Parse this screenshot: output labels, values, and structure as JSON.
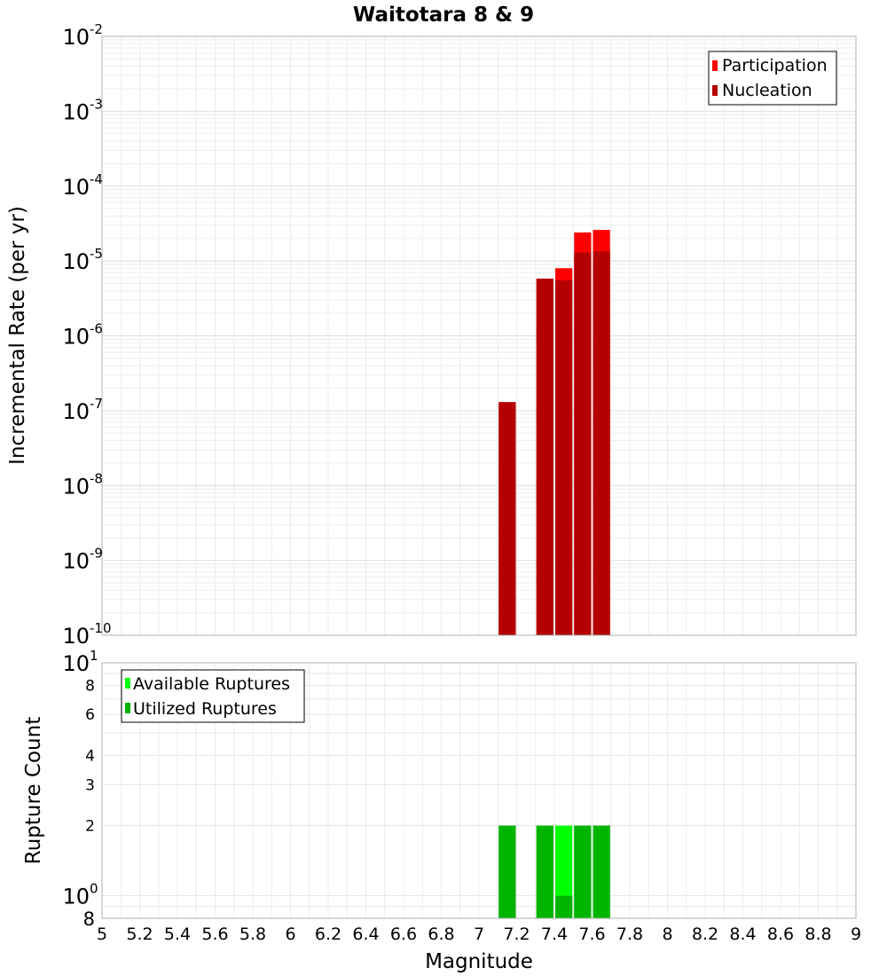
{
  "chart_data": [
    {
      "type": "bar",
      "title": "Waitotara 8 & 9",
      "xlabel": "Magnitude",
      "ylabel": "Incremental Rate (per yr)",
      "yscale": "log",
      "ylim": [
        1e-10,
        0.01
      ],
      "xlim": [
        5,
        9
      ],
      "bin_width": 0.1,
      "legend_position": "top-right",
      "y_ticks": [
        {
          "mantissa": "10",
          "exponent": "-10"
        },
        {
          "mantissa": "10",
          "exponent": "-9"
        },
        {
          "mantissa": "10",
          "exponent": "-8"
        },
        {
          "mantissa": "10",
          "exponent": "-7"
        },
        {
          "mantissa": "10",
          "exponent": "-6"
        },
        {
          "mantissa": "10",
          "exponent": "-5"
        },
        {
          "mantissa": "10",
          "exponent": "-4"
        },
        {
          "mantissa": "10",
          "exponent": "-3"
        },
        {
          "mantissa": "10",
          "exponent": "-2"
        }
      ],
      "series": [
        {
          "name": "Participation",
          "color": "#ff0000",
          "x": [
            7.15,
            7.35,
            7.45,
            7.55,
            7.65
          ],
          "values": [
            1.3e-07,
            5.8e-06,
            8e-06,
            2.4e-05,
            2.6e-05
          ]
        },
        {
          "name": "Nucleation",
          "color": "#b40000",
          "x": [
            7.15,
            7.35,
            7.45,
            7.55,
            7.65
          ],
          "values": [
            1.3e-07,
            5.8e-06,
            5.5e-06,
            1.3e-05,
            1.35e-05
          ]
        }
      ]
    },
    {
      "type": "bar",
      "xlabel": "Magnitude",
      "ylabel": "Rupture Count",
      "yscale": "log",
      "ylim": [
        0.8,
        10
      ],
      "xlim": [
        5,
        9
      ],
      "bin_width": 0.1,
      "legend_position": "top-left",
      "y_ticks": [
        {
          "value": 0.8,
          "label": "8",
          "exponent": ""
        },
        {
          "value": 1,
          "label": "10",
          "exponent": "0"
        },
        {
          "value": 2,
          "label": "2",
          "exponent": ""
        },
        {
          "value": 3,
          "label": "3",
          "exponent": ""
        },
        {
          "value": 4,
          "label": "4",
          "exponent": ""
        },
        {
          "value": 6,
          "label": "6",
          "exponent": ""
        },
        {
          "value": 8,
          "label": "8",
          "exponent": ""
        },
        {
          "value": 10,
          "label": "10",
          "exponent": "1"
        }
      ],
      "x_ticks": [
        "5",
        "5.2",
        "5.4",
        "5.6",
        "5.8",
        "6",
        "6.2",
        "6.4",
        "6.6",
        "6.8",
        "7",
        "7.2",
        "7.4",
        "7.6",
        "7.8",
        "8",
        "8.2",
        "8.4",
        "8.6",
        "8.8",
        "9"
      ],
      "series": [
        {
          "name": "Available Ruptures",
          "color": "#00ff00",
          "x": [
            7.15,
            7.35,
            7.45,
            7.55,
            7.65
          ],
          "values": [
            2,
            2,
            2,
            2,
            2
          ]
        },
        {
          "name": "Utilized Ruptures",
          "color": "#00b400",
          "x": [
            7.15,
            7.35,
            7.45,
            7.55,
            7.65
          ],
          "values": [
            2,
            2,
            1,
            2,
            2
          ]
        }
      ]
    }
  ]
}
